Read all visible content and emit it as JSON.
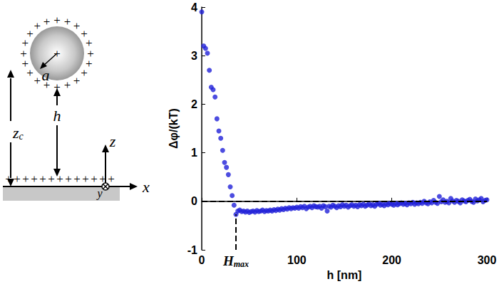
{
  "chart_data": {
    "type": "scatter",
    "x_label": "h [nm]",
    "y_label": "Δφ/(kT)",
    "xlim": [
      0,
      300
    ],
    "xticks": [
      0,
      100,
      200,
      300
    ],
    "ylim": [
      -1,
      4
    ],
    "yticks": [
      -1,
      0,
      1,
      2,
      3,
      4
    ],
    "grid": false,
    "hlines": [
      0
    ],
    "annotation": {
      "text": "H",
      "sub": "max",
      "x": 36,
      "y": -0.27
    },
    "series": [
      {
        "color": "#2020d8",
        "marker": "circle",
        "x": [
          0,
          2,
          4,
          6,
          8,
          10,
          12,
          14,
          16,
          18,
          20,
          22,
          24,
          26,
          28,
          30,
          32,
          34,
          36,
          38,
          40,
          42,
          44,
          46,
          48,
          50,
          52,
          54,
          56,
          58,
          60,
          62,
          64,
          66,
          68,
          70,
          72,
          74,
          76,
          78,
          80,
          82,
          84,
          86,
          88,
          90,
          92,
          94,
          96,
          98,
          100,
          102,
          104,
          106,
          108,
          110,
          112,
          114,
          116,
          118,
          120,
          122,
          124,
          126,
          128,
          130,
          132,
          134,
          136,
          138,
          140,
          142,
          144,
          146,
          148,
          150,
          152,
          154,
          156,
          158,
          160,
          162,
          164,
          166,
          168,
          170,
          172,
          174,
          176,
          178,
          180,
          182,
          184,
          186,
          188,
          190,
          192,
          194,
          196,
          198,
          200,
          202,
          204,
          206,
          208,
          210,
          212,
          214,
          216,
          218,
          220,
          222,
          224,
          226,
          228,
          230,
          232,
          234,
          236,
          238,
          240,
          242,
          244,
          246,
          248,
          250,
          252,
          254,
          256,
          258,
          260,
          262,
          264,
          266,
          268,
          270,
          272,
          274,
          276,
          278,
          280,
          282,
          284,
          286,
          288,
          290,
          292,
          294,
          296,
          298,
          300
        ],
        "values": [
          3.9,
          3.2,
          3.15,
          3.05,
          2.7,
          2.35,
          2.3,
          2.15,
          1.7,
          1.45,
          1.3,
          1.05,
          0.8,
          0.7,
          0.55,
          0.3,
          0.12,
          -0.08,
          -0.27,
          -0.2,
          -0.18,
          -0.21,
          -0.2,
          -0.22,
          -0.2,
          -0.23,
          -0.21,
          -0.2,
          -0.22,
          -0.19,
          -0.21,
          -0.2,
          -0.18,
          -0.21,
          -0.19,
          -0.2,
          -0.18,
          -0.2,
          -0.17,
          -0.19,
          -0.16,
          -0.18,
          -0.15,
          -0.17,
          -0.14,
          -0.16,
          -0.13,
          -0.15,
          -0.13,
          -0.14,
          -0.12,
          -0.14,
          -0.11,
          -0.13,
          -0.1,
          -0.15,
          -0.12,
          -0.1,
          -0.13,
          -0.09,
          -0.11,
          -0.12,
          -0.1,
          -0.14,
          -0.09,
          -0.11,
          -0.2,
          -0.1,
          -0.12,
          -0.08,
          -0.1,
          -0.13,
          -0.09,
          -0.11,
          -0.07,
          -0.1,
          -0.08,
          -0.12,
          -0.09,
          -0.07,
          -0.1,
          -0.08,
          -0.11,
          -0.07,
          -0.09,
          -0.06,
          -0.1,
          -0.08,
          -0.05,
          -0.09,
          -0.07,
          -0.1,
          -0.06,
          -0.04,
          -0.08,
          -0.06,
          -0.09,
          -0.05,
          -0.07,
          -0.04,
          -0.06,
          -0.08,
          -0.04,
          -0.07,
          -0.05,
          -0.03,
          -0.06,
          -0.04,
          -0.07,
          -0.03,
          -0.05,
          -0.02,
          -0.06,
          -0.03,
          -0.05,
          -0.02,
          -0.04,
          0,
          -0.03,
          -0.05,
          -0.01,
          -0.03,
          0.02,
          -0.02,
          -0.04,
          0.1,
          -0.01,
          0.03,
          -0.02,
          0,
          -0.03,
          0.06,
          0.01,
          -0.02,
          0.02,
          0,
          -0.03,
          0.03,
          0.01,
          -0.01,
          0.02,
          0.04,
          0,
          -0.02,
          0.05,
          0.01,
          0.03,
          0.06,
          -0.01,
          0.02,
          0.03
        ]
      }
    ]
  },
  "diagram": {
    "charge": "+",
    "labels": {
      "radius": "a",
      "gap": "h",
      "center_height": {
        "text": "z",
        "sub": "c"
      },
      "z_axis": "z",
      "x_axis": "x",
      "y_axis": "y"
    }
  }
}
